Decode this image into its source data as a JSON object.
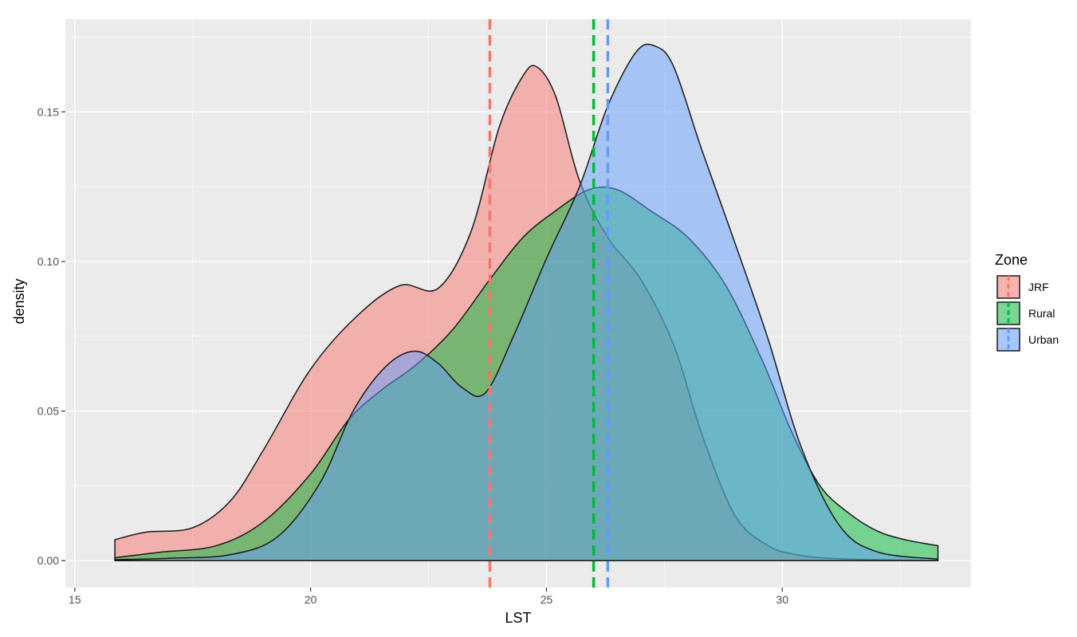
{
  "chart_data": {
    "type": "area",
    "title": "",
    "xlabel": "LST",
    "ylabel": "density",
    "xlim": [
      14.8,
      34.0
    ],
    "ylim": [
      -0.009,
      0.181
    ],
    "grid": true,
    "legend_title": "Zone",
    "legend_position": "right",
    "x_ticks": [
      15,
      20,
      25,
      30
    ],
    "x_tick_labels": [
      "15",
      "20",
      "25",
      "30"
    ],
    "y_ticks": [
      0,
      0.05,
      0.1,
      0.15
    ],
    "y_tick_labels": [
      "0.00",
      "0.05",
      "0.10",
      "0.15"
    ],
    "series": [
      {
        "name": "JRF",
        "color": "#F8766D",
        "mean": 23.8,
        "x": [
          15.85,
          16.5,
          17.5,
          18.3,
          19.0,
          20.0,
          21.0,
          21.9,
          22.7,
          23.4,
          24.0,
          24.5,
          24.8,
          25.2,
          25.7,
          26.3,
          27.0,
          27.7,
          28.3,
          29.0,
          29.7,
          30.3,
          31.0,
          32.0,
          33.3
        ],
        "y": [
          0.007,
          0.0095,
          0.011,
          0.02,
          0.037,
          0.064,
          0.082,
          0.092,
          0.091,
          0.11,
          0.145,
          0.162,
          0.165,
          0.155,
          0.127,
          0.108,
          0.094,
          0.072,
          0.042,
          0.015,
          0.005,
          0.002,
          0.0008,
          0.0003,
          0.0001
        ]
      },
      {
        "name": "Rural",
        "color": "#00BA38",
        "mean": 26.0,
        "x": [
          15.85,
          16.8,
          18.0,
          19.0,
          20.0,
          20.8,
          21.5,
          22.2,
          23.0,
          23.8,
          24.5,
          25.2,
          25.9,
          26.5,
          27.2,
          28.0,
          28.8,
          29.6,
          30.2,
          30.8,
          31.4,
          32.0,
          32.6,
          33.3
        ],
        "y": [
          0.001,
          0.0028,
          0.005,
          0.013,
          0.029,
          0.047,
          0.057,
          0.065,
          0.077,
          0.094,
          0.108,
          0.117,
          0.124,
          0.124,
          0.117,
          0.108,
          0.092,
          0.066,
          0.043,
          0.025,
          0.016,
          0.01,
          0.007,
          0.005
        ]
      },
      {
        "name": "Urban",
        "color": "#619CFF",
        "mean": 26.3,
        "x": [
          15.85,
          17.0,
          18.3,
          19.3,
          20.2,
          20.9,
          21.6,
          22.2,
          22.7,
          23.2,
          23.7,
          24.3,
          25.0,
          25.7,
          26.3,
          26.9,
          27.3,
          27.7,
          28.3,
          29.0,
          29.7,
          30.4,
          31.2,
          32.0,
          33.3
        ],
        "y": [
          0.0003,
          0.0008,
          0.002,
          0.008,
          0.026,
          0.05,
          0.065,
          0.07,
          0.066,
          0.058,
          0.056,
          0.075,
          0.101,
          0.125,
          0.152,
          0.17,
          0.172,
          0.165,
          0.137,
          0.106,
          0.074,
          0.038,
          0.012,
          0.003,
          0.0005
        ]
      }
    ]
  }
}
